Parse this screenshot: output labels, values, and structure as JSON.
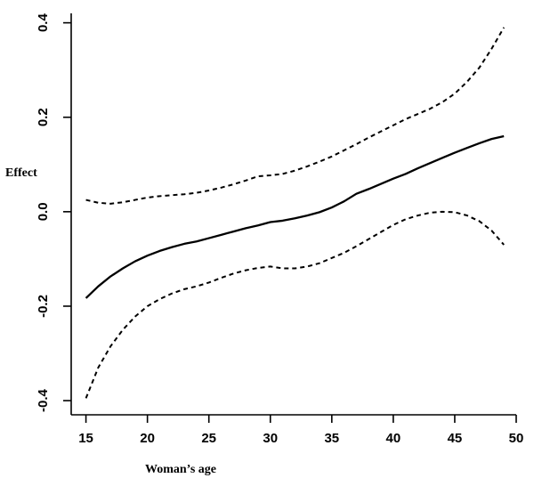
{
  "chart_data": {
    "type": "line",
    "title": "",
    "xlabel": "Woman’s age",
    "ylabel": "Effect",
    "xlim": [
      13.8,
      50
    ],
    "ylim": [
      -0.43,
      0.42
    ],
    "xticks": [
      15,
      20,
      25,
      30,
      35,
      40,
      45,
      50
    ],
    "yticks": [
      -0.4,
      -0.2,
      0.0,
      0.2,
      0.4
    ],
    "ytick_labels": [
      "-0.4",
      "-0.2",
      "0.0",
      "0.2",
      "0.4"
    ],
    "grid": false,
    "legend": "none",
    "series": [
      {
        "style": "solid",
        "color": "#000000",
        "x": [
          15,
          16,
          17,
          18,
          19,
          20,
          21,
          22,
          23,
          24,
          25,
          26,
          27,
          28,
          29,
          30,
          31,
          32,
          33,
          34,
          35,
          36,
          37,
          38,
          39,
          40,
          41,
          42,
          43,
          44,
          45,
          46,
          47,
          48,
          49
        ],
        "y": [
          -0.183,
          -0.158,
          -0.137,
          -0.12,
          -0.105,
          -0.093,
          -0.083,
          -0.075,
          -0.068,
          -0.063,
          -0.056,
          -0.049,
          -0.042,
          -0.035,
          -0.029,
          -0.022,
          -0.019,
          -0.014,
          -0.008,
          -0.001,
          0.009,
          0.022,
          0.038,
          0.048,
          0.059,
          0.07,
          0.08,
          0.092,
          0.103,
          0.114,
          0.125,
          0.135,
          0.145,
          0.154,
          0.16
        ]
      },
      {
        "style": "dashed",
        "color": "#000000",
        "x": [
          15,
          16,
          17,
          18,
          19,
          20,
          21,
          22,
          23,
          24,
          25,
          26,
          27,
          28,
          29,
          30,
          31,
          32,
          33,
          34,
          35,
          36,
          37,
          38,
          39,
          40,
          41,
          42,
          43,
          44,
          45,
          46,
          47,
          48,
          49
        ],
        "y": [
          0.025,
          0.019,
          0.017,
          0.02,
          0.025,
          0.03,
          0.033,
          0.035,
          0.037,
          0.04,
          0.045,
          0.051,
          0.058,
          0.066,
          0.075,
          0.077,
          0.08,
          0.087,
          0.096,
          0.106,
          0.117,
          0.13,
          0.143,
          0.157,
          0.17,
          0.183,
          0.196,
          0.207,
          0.218,
          0.232,
          0.25,
          0.275,
          0.305,
          0.345,
          0.39
        ]
      },
      {
        "style": "dashed",
        "color": "#000000",
        "x": [
          15,
          16,
          17,
          18,
          19,
          20,
          21,
          22,
          23,
          24,
          25,
          26,
          27,
          28,
          29,
          30,
          31,
          32,
          33,
          34,
          35,
          36,
          37,
          38,
          39,
          40,
          41,
          42,
          43,
          44,
          45,
          46,
          47,
          48,
          49
        ],
        "y": [
          -0.395,
          -0.33,
          -0.285,
          -0.25,
          -0.222,
          -0.2,
          -0.185,
          -0.173,
          -0.164,
          -0.158,
          -0.15,
          -0.14,
          -0.131,
          -0.124,
          -0.119,
          -0.116,
          -0.12,
          -0.12,
          -0.116,
          -0.109,
          -0.098,
          -0.087,
          -0.073,
          -0.058,
          -0.043,
          -0.028,
          -0.016,
          -0.008,
          -0.002,
          0.0,
          -0.001,
          -0.008,
          -0.02,
          -0.04,
          -0.07
        ]
      }
    ]
  }
}
